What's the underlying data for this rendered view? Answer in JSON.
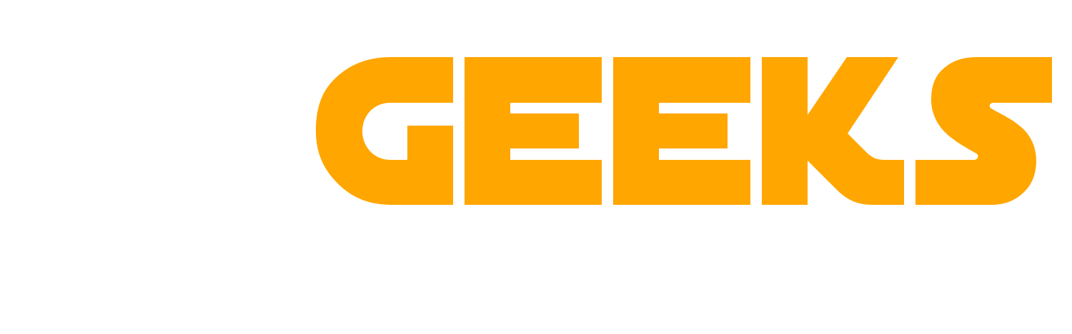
{
  "logo": {
    "wordmark": "GEEKS",
    "color": "#FFA600",
    "background": "#FFFFFF"
  }
}
